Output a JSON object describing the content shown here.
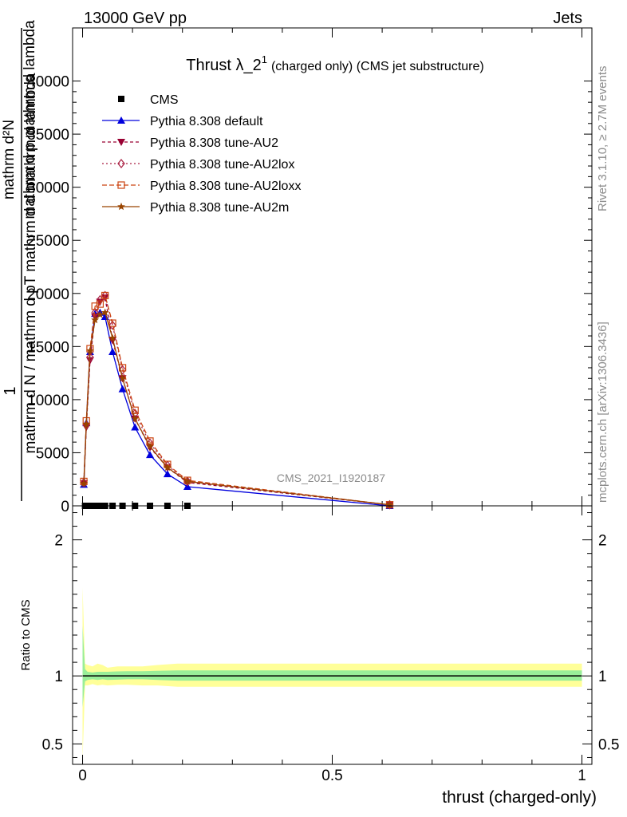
{
  "header": {
    "energy_label": "13000 GeV pp",
    "process_label": "Jets"
  },
  "side": {
    "rivet_label": "Rivet 3.1.10, ≥ 2.7M events",
    "mcplots_label": "mcplots.cern.ch [arXiv:1306.3436]"
  },
  "chart_data": [
    {
      "type": "line",
      "title_main": "Thrust λ_2",
      "title_sup": "1",
      "title_rest": "(charged only) (CMS jet substructure)",
      "watermark": "CMS_2021_I1920187",
      "ylabel_lines": [
        "1",
        "mathrm d N / mathrm d pT mathrm d d mathrm d lambda",
        "mathrm d²N",
        "mathrm d p mathrm d lambda"
      ],
      "xlim": [
        -0.02,
        1.02
      ],
      "ylim": [
        0,
        45000
      ],
      "yticks": [
        0,
        5000,
        10000,
        15000,
        20000,
        25000,
        30000,
        35000,
        40000
      ],
      "ytick_labels": [
        "0",
        "5000",
        "10000",
        "15000",
        "20000",
        "25000",
        "30000",
        "35000",
        "40000"
      ],
      "legend_position": "top-left",
      "series": [
        {
          "name": "CMS",
          "color": "#000000",
          "marker": "square",
          "x": [
            0.005,
            0.015,
            0.025,
            0.035,
            0.045,
            0.06,
            0.08,
            0.105,
            0.135,
            0.17,
            0.21
          ],
          "y": [
            0,
            0,
            0,
            0,
            0,
            0,
            0,
            0,
            0,
            0,
            0
          ]
        },
        {
          "name": "Pythia 8.308 default",
          "color": "#0000dd",
          "marker": "triangle-up",
          "dash": "",
          "x": [
            0.0025,
            0.0075,
            0.015,
            0.025,
            0.035,
            0.045,
            0.06,
            0.08,
            0.105,
            0.135,
            0.17,
            0.21,
            0.615
          ],
          "y": [
            2000,
            7800,
            14500,
            18100,
            18200,
            17800,
            14500,
            11000,
            7400,
            4800,
            3000,
            1800,
            0
          ]
        },
        {
          "name": "Pythia 8.308 tune-AU2",
          "color": "#990033",
          "marker": "triangle-down",
          "dash": "4,3",
          "x": [
            0.0025,
            0.0075,
            0.015,
            0.025,
            0.035,
            0.045,
            0.06,
            0.08,
            0.105,
            0.135,
            0.17,
            0.21,
            0.615
          ],
          "y": [
            2100,
            7400,
            13700,
            17800,
            19200,
            19600,
            15600,
            12000,
            8200,
            5500,
            3600,
            2200,
            100
          ]
        },
        {
          "name": "Pythia 8.308 tune-AU2lox",
          "color": "#aa2244",
          "marker": "diamond",
          "dash": "2,3",
          "x": [
            0.0025,
            0.0075,
            0.015,
            0.025,
            0.035,
            0.045,
            0.06,
            0.08,
            0.105,
            0.135,
            0.17,
            0.21,
            0.615
          ],
          "y": [
            2200,
            7600,
            14000,
            18200,
            19400,
            19800,
            17000,
            12800,
            8700,
            5900,
            3800,
            2300,
            100
          ]
        },
        {
          "name": "Pythia 8.308 tune-AU2loxx",
          "color": "#cc4411",
          "marker": "square-open",
          "dash": "6,3",
          "x": [
            0.0025,
            0.0075,
            0.015,
            0.025,
            0.035,
            0.045,
            0.06,
            0.08,
            0.105,
            0.135,
            0.17,
            0.21,
            0.615
          ],
          "y": [
            2300,
            8000,
            14800,
            18800,
            19000,
            19800,
            17200,
            13000,
            9000,
            6100,
            3900,
            2400,
            100
          ]
        },
        {
          "name": "Pythia 8.308 tune-AU2m",
          "color": "#994400",
          "marker": "star",
          "dash": "",
          "x": [
            0.0025,
            0.0075,
            0.015,
            0.025,
            0.035,
            0.045,
            0.06,
            0.08,
            0.105,
            0.135,
            0.17,
            0.21,
            0.615
          ],
          "y": [
            2100,
            7700,
            14600,
            17500,
            18000,
            18200,
            15800,
            12000,
            8200,
            5600,
            3600,
            2300,
            100
          ]
        }
      ]
    },
    {
      "type": "line",
      "ylabel": "Ratio to CMS",
      "xlabel": "thrust (charged-only)",
      "xlim": [
        -0.02,
        1.02
      ],
      "ylim": [
        0.35,
        2.25
      ],
      "yticks": [
        0.5,
        1,
        2
      ],
      "ytick_labels": [
        "0.5",
        "1",
        "2"
      ],
      "xticks": [
        0,
        0.5,
        1
      ],
      "xtick_labels": [
        "0",
        "0.5",
        "1"
      ],
      "reference_line": 1,
      "bands": {
        "x": [
          0.0,
          0.005,
          0.01,
          0.02,
          0.03,
          0.04,
          0.05,
          0.07,
          0.09,
          0.12,
          0.15,
          0.19,
          0.23,
          1.0
        ],
        "inner_lo": [
          0.77,
          0.96,
          0.97,
          0.975,
          0.97,
          0.975,
          0.97,
          0.972,
          0.975,
          0.975,
          0.97,
          0.965,
          0.965,
          0.965
        ],
        "inner_hi": [
          1.37,
          1.05,
          1.03,
          1.025,
          1.03,
          1.03,
          1.03,
          1.033,
          1.035,
          1.035,
          1.038,
          1.04,
          1.04,
          1.04
        ],
        "outer_lo": [
          0.38,
          0.93,
          0.93,
          0.94,
          0.93,
          0.935,
          0.93,
          0.935,
          0.935,
          0.93,
          0.93,
          0.92,
          0.92,
          0.92
        ],
        "outer_hi": [
          1.65,
          1.09,
          1.08,
          1.07,
          1.09,
          1.08,
          1.06,
          1.07,
          1.07,
          1.07,
          1.08,
          1.09,
          1.09,
          1.09
        ],
        "inner_color": "#99ee99",
        "outer_color": "#ffff99"
      }
    }
  ]
}
